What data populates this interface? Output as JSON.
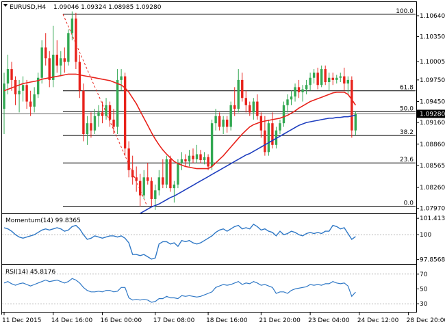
{
  "header": {
    "symbol": "EURUSD,H4",
    "ohlc": "1.09046 1.09324 1.08985 1.09280"
  },
  "colors": {
    "bull": "#32a852",
    "bear": "#e8221b",
    "ma_fast": "#e8221b",
    "ma_slow": "#1f3fbf",
    "indicator": "#2f78c6",
    "fib_line": "#000000",
    "fib_trend": "#e8221b"
  },
  "chart_data": [
    {
      "type": "candlestick",
      "name": "price",
      "price_range": [
        1.0791,
        1.1082
      ],
      "price_ticks": [
        "1.10640",
        "1.10350",
        "1.10005",
        "1.09750",
        "1.09450",
        "1.09160",
        "1.08860",
        "1.08565",
        "1.08260",
        "1.07970"
      ],
      "current_price": "1.09280",
      "fibonacci": [
        {
          "label": "100.0",
          "price": 1.1066
        },
        {
          "label": "61.8",
          "price": 1.096
        },
        {
          "label": "50.0",
          "price": 1.0931
        },
        {
          "label": "38.2",
          "price": 1.0898
        },
        {
          "label": "23.6",
          "price": 1.086
        },
        {
          "label": "0.0",
          "price": 1.08
        }
      ],
      "fib_trend": [
        [
          1.1066,
          1.08
        ]
      ],
      "candles": [
        [
          1.0935,
          1.0985,
          1.09,
          1.097
        ],
        [
          1.097,
          1.101,
          1.0955,
          1.099
        ],
        [
          1.099,
          1.1,
          1.096,
          1.0975
        ],
        [
          1.0975,
          1.098,
          1.094,
          1.0955
        ],
        [
          1.0955,
          1.0975,
          1.093,
          1.096
        ],
        [
          1.096,
          1.098,
          1.0945,
          1.0968
        ],
        [
          1.0968,
          1.0975,
          1.0935,
          1.0945
        ],
        [
          1.0945,
          1.096,
          1.0925,
          1.0938
        ],
        [
          1.0938,
          1.0965,
          1.093,
          1.0955
        ],
        [
          1.0955,
          1.0985,
          1.095,
          1.0978
        ],
        [
          1.0978,
          1.103,
          1.097,
          1.102
        ],
        [
          1.102,
          1.104,
          1.0995,
          1.1005
        ],
        [
          1.1005,
          1.1015,
          1.0965,
          1.0975
        ],
        [
          1.0975,
          1.105,
          1.0965,
          1.101
        ],
        [
          1.101,
          1.103,
          1.0985,
          1.0995
        ],
        [
          1.0995,
          1.1015,
          1.098,
          1.1005
        ],
        [
          1.1005,
          1.102,
          1.0985,
          1.1
        ],
        [
          1.1,
          1.1045,
          1.0995,
          1.104
        ],
        [
          1.104,
          1.107,
          1.103,
          1.106
        ],
        [
          1.106,
          1.1068,
          1.099,
          1.1
        ],
        [
          1.1,
          1.101,
          1.095,
          1.096
        ],
        [
          1.096,
          1.097,
          1.089,
          1.09
        ],
        [
          1.09,
          1.0925,
          1.0885,
          1.0915
        ],
        [
          1.0915,
          1.093,
          1.0895,
          1.0905
        ],
        [
          1.0905,
          1.0935,
          1.09,
          1.0925
        ],
        [
          1.0925,
          1.094,
          1.091,
          1.093
        ],
        [
          1.093,
          1.0945,
          1.0915,
          1.0925
        ],
        [
          1.0925,
          1.095,
          1.092,
          1.094
        ],
        [
          1.094,
          1.0945,
          1.091,
          1.092
        ],
        [
          1.092,
          1.0935,
          1.09,
          1.091
        ],
        [
          1.091,
          1.099,
          1.09,
          1.0975
        ],
        [
          1.0975,
          1.099,
          1.096,
          1.098
        ],
        [
          1.098,
          1.0985,
          1.087,
          1.088
        ],
        [
          1.088,
          1.089,
          1.084,
          1.085
        ],
        [
          1.085,
          1.087,
          1.083,
          1.084
        ],
        [
          1.084,
          1.0855,
          1.082,
          1.0835
        ],
        [
          1.0835,
          1.0845,
          1.08,
          1.0815
        ],
        [
          1.0815,
          1.085,
          1.081,
          1.084
        ],
        [
          1.084,
          1.086,
          1.083,
          1.0835
        ],
        [
          1.0835,
          1.084,
          1.08,
          1.081
        ],
        [
          1.081,
          1.083,
          1.0795,
          1.0822
        ],
        [
          1.0822,
          1.085,
          1.0815,
          1.084
        ],
        [
          1.084,
          1.0865,
          1.0825,
          1.083
        ],
        [
          1.083,
          1.087,
          1.0825,
          1.0865
        ],
        [
          1.0865,
          1.087,
          1.082,
          1.0825
        ],
        [
          1.0825,
          1.0835,
          1.0805,
          1.083
        ],
        [
          1.083,
          1.0865,
          1.0825,
          1.086
        ],
        [
          1.086,
          1.0875,
          1.085,
          1.0865
        ],
        [
          1.0865,
          1.0872,
          1.0855,
          1.0862
        ],
        [
          1.0862,
          1.0878,
          1.0855,
          1.087
        ],
        [
          1.087,
          1.088,
          1.086,
          1.0865
        ],
        [
          1.0865,
          1.0885,
          1.086,
          1.0872
        ],
        [
          1.0872,
          1.0878,
          1.086,
          1.0864
        ],
        [
          1.0864,
          1.0875,
          1.0858,
          1.0868
        ],
        [
          1.0868,
          1.0872,
          1.085,
          1.0855
        ],
        [
          1.0855,
          1.092,
          1.085,
          1.0915
        ],
        [
          1.0915,
          1.0935,
          1.0905,
          1.0925
        ],
        [
          1.0925,
          1.093,
          1.0905,
          1.091
        ],
        [
          1.091,
          1.0925,
          1.09,
          1.092
        ],
        [
          1.092,
          1.0925,
          1.0902,
          1.091
        ],
        [
          1.091,
          1.0945,
          1.0905,
          1.094
        ],
        [
          1.094,
          1.0965,
          1.0925,
          1.0935
        ],
        [
          1.0935,
          1.099,
          1.093,
          1.0975
        ],
        [
          1.0975,
          1.0985,
          1.0945,
          1.095
        ],
        [
          1.095,
          1.096,
          1.093,
          1.094
        ],
        [
          1.094,
          1.0945,
          1.0925,
          1.093
        ],
        [
          1.093,
          1.095,
          1.092,
          1.0945
        ],
        [
          1.0945,
          1.0955,
          1.092,
          1.0925
        ],
        [
          1.0925,
          1.093,
          1.0895,
          1.0905
        ],
        [
          1.0905,
          1.0925,
          1.087,
          1.0875
        ],
        [
          1.0875,
          1.092,
          1.087,
          1.0915
        ],
        [
          1.0915,
          1.093,
          1.088,
          1.0885
        ],
        [
          1.0885,
          1.091,
          1.088,
          1.0905
        ],
        [
          1.0905,
          1.092,
          1.09,
          1.0915
        ],
        [
          1.0915,
          1.0945,
          1.091,
          1.094
        ],
        [
          1.094,
          1.0955,
          1.093,
          1.0948
        ],
        [
          1.0948,
          1.096,
          1.094,
          1.0952
        ],
        [
          1.0952,
          1.097,
          1.0945,
          1.0965
        ],
        [
          1.0965,
          1.0975,
          1.095,
          1.0958
        ],
        [
          1.0958,
          1.0968,
          1.0945,
          1.0962
        ],
        [
          1.0962,
          1.0975,
          1.0955,
          1.0968
        ],
        [
          1.0968,
          1.0985,
          1.096,
          1.0978
        ],
        [
          1.0978,
          1.099,
          1.097,
          1.0985
        ],
        [
          1.0985,
          1.0992,
          1.0962,
          1.0968
        ],
        [
          1.0968,
          1.0995,
          1.0965,
          1.099
        ],
        [
          1.099,
          1.0995,
          1.0968,
          1.0972
        ],
        [
          1.0972,
          1.0985,
          1.096,
          1.0978
        ],
        [
          1.0978,
          1.0985,
          1.0968,
          1.0975
        ],
        [
          1.0975,
          1.0982,
          1.097,
          1.0978
        ],
        [
          1.0978,
          1.0985,
          1.0972,
          1.098
        ],
        [
          1.098,
          1.0992,
          1.096,
          1.097
        ],
        [
          1.097,
          1.098,
          1.0955,
          1.0975
        ],
        [
          1.0975,
          1.098,
          1.0895,
          1.0905
        ],
        [
          1.0905,
          1.0932,
          1.0898,
          1.0928
        ]
      ],
      "ma_fast": [
        1.096,
        1.0962,
        1.0964,
        1.0966,
        1.0968,
        1.097,
        1.0971,
        1.0972,
        1.0973,
        1.0974,
        1.0976,
        1.0977,
        1.0978,
        1.0979,
        1.098,
        1.0981,
        1.0982,
        1.0983,
        1.0983,
        1.0983,
        1.0982,
        1.0981,
        1.098,
        1.0979,
        1.0978,
        1.0977,
        1.0976,
        1.0975,
        1.0974,
        1.0972,
        1.097,
        1.0968,
        1.0964,
        1.0958,
        1.095,
        1.0942,
        1.0932,
        1.0922,
        1.0912,
        1.0902,
        1.0893,
        1.0885,
        1.0878,
        1.0872,
        1.0867,
        1.0862,
        1.0859,
        1.0857,
        1.0855,
        1.0854,
        1.0853,
        1.0852,
        1.0852,
        1.0852,
        1.0852,
        1.0855,
        1.086,
        1.0865,
        1.087,
        1.0876,
        1.0882,
        1.0888,
        1.0894,
        1.09,
        1.0905,
        1.091,
        1.0913,
        1.0915,
        1.0917,
        1.0918,
        1.0919,
        1.092,
        1.0921,
        1.0922,
        1.0924,
        1.0926,
        1.0929,
        1.0932,
        1.0936,
        1.0939,
        1.0942,
        1.0945,
        1.0947,
        1.0949,
        1.0951,
        1.0953,
        1.0955,
        1.0957,
        1.0958,
        1.0958,
        1.0958,
        1.0955,
        1.0948,
        1.094
      ],
      "ma_slow": [
        null,
        null,
        null,
        null,
        null,
        null,
        null,
        null,
        null,
        null,
        null,
        null,
        null,
        null,
        null,
        null,
        null,
        null,
        null,
        null,
        null,
        null,
        null,
        null,
        null,
        null,
        null,
        null,
        null,
        null,
        null,
        null,
        null,
        null,
        null,
        null,
        1.079,
        1.0793,
        1.0796,
        1.0799,
        1.0801,
        1.0803,
        1.0806,
        1.0809,
        1.0812,
        1.0814,
        1.0817,
        1.082,
        1.0823,
        1.0826,
        1.0829,
        1.0832,
        1.0835,
        1.0838,
        1.0841,
        1.0844,
        1.0847,
        1.085,
        1.0853,
        1.0856,
        1.0859,
        1.0862,
        1.0865,
        1.0868,
        1.0871,
        1.0873,
        1.0876,
        1.0879,
        1.0882,
        1.0885,
        1.0888,
        1.0891,
        1.0894,
        1.0897,
        1.09,
        1.0903,
        1.0906,
        1.0909,
        1.0912,
        1.0914,
        1.0916,
        1.0917,
        1.0918,
        1.0919,
        1.092,
        1.0921,
        1.0922,
        1.0922,
        1.0923,
        1.0923,
        1.0924,
        1.0924,
        1.0925,
        1.0926
      ],
      "x_labels": [
        {
          "label": "11 Dec 2015",
          "index": 0
        },
        {
          "label": "14 Dec 16:00",
          "index": 13
        },
        {
          "label": "16 Dec 00:00",
          "index": 26
        },
        {
          "label": "17 Dec 08:00",
          "index": 40
        },
        {
          "label": "18 Dec 16:00",
          "index": 54
        },
        {
          "label": "21 Dec 20:00",
          "index": 68
        },
        {
          "label": "23 Dec 04:00",
          "index": 81
        },
        {
          "label": "24 Dec 12:00",
          "index": 94
        },
        {
          "label": "28 Dec 20:00",
          "index": 107
        }
      ]
    },
    {
      "type": "line",
      "name": "momentum",
      "title": "Momentum(14) 99.8365",
      "y_range": [
        97.6,
        101.6
      ],
      "ticks": [
        "101.4137",
        "100",
        "97.8568"
      ],
      "reference": 100,
      "values": [
        100.6,
        100.5,
        100.3,
        100.0,
        99.8,
        99.7,
        99.8,
        99.9,
        100.0,
        100.2,
        100.4,
        100.5,
        100.4,
        100.5,
        100.6,
        100.5,
        100.3,
        100.4,
        100.7,
        100.8,
        100.5,
        100.0,
        99.6,
        99.7,
        99.9,
        99.8,
        99.7,
        99.8,
        99.9,
        99.9,
        99.8,
        99.9,
        99.7,
        99.3,
        98.3,
        98.3,
        98.2,
        98.3,
        98.1,
        97.9,
        98.0,
        99.2,
        99.4,
        99.4,
        99.2,
        99.3,
        99.0,
        99.5,
        99.4,
        99.5,
        99.3,
        99.2,
        99.3,
        99.5,
        99.7,
        99.9,
        100.2,
        100.4,
        100.5,
        100.3,
        100.5,
        100.7,
        100.8,
        100.5,
        100.6,
        100.5,
        100.9,
        100.7,
        100.4,
        100.5,
        100.3,
        100.2,
        99.9,
        100.3,
        100.0,
        100.1,
        100.3,
        100.2,
        100.0,
        99.9,
        100.1,
        100.2,
        100.1,
        100.2,
        100.1,
        100.3,
        100.3,
        100.8,
        100.7,
        100.5,
        100.6,
        100.1,
        99.6,
        99.84
      ]
    },
    {
      "type": "line",
      "name": "rsi",
      "title": "RSI(14) 45.8176",
      "y_range": [
        20,
        80
      ],
      "ticks": [
        "70",
        "50",
        "30"
      ],
      "levels": [
        70,
        30
      ],
      "values": [
        58,
        60,
        57,
        55,
        57,
        58,
        56,
        54,
        56,
        58,
        60,
        62,
        60,
        61,
        62,
        60,
        58,
        60,
        64,
        62,
        58,
        52,
        48,
        46,
        46,
        47,
        46,
        48,
        48,
        46,
        47,
        52,
        52,
        38,
        35,
        36,
        35,
        36,
        35,
        32,
        33,
        37,
        37,
        40,
        38,
        38,
        37,
        41,
        40,
        41,
        40,
        39,
        40,
        42,
        44,
        46,
        52,
        54,
        56,
        55,
        56,
        58,
        60,
        56,
        58,
        57,
        60,
        58,
        55,
        56,
        54,
        52,
        44,
        46,
        46,
        44,
        48,
        50,
        51,
        52,
        53,
        56,
        55,
        56,
        55,
        57,
        57,
        60,
        58,
        57,
        58,
        54,
        40,
        45.8
      ]
    }
  ]
}
